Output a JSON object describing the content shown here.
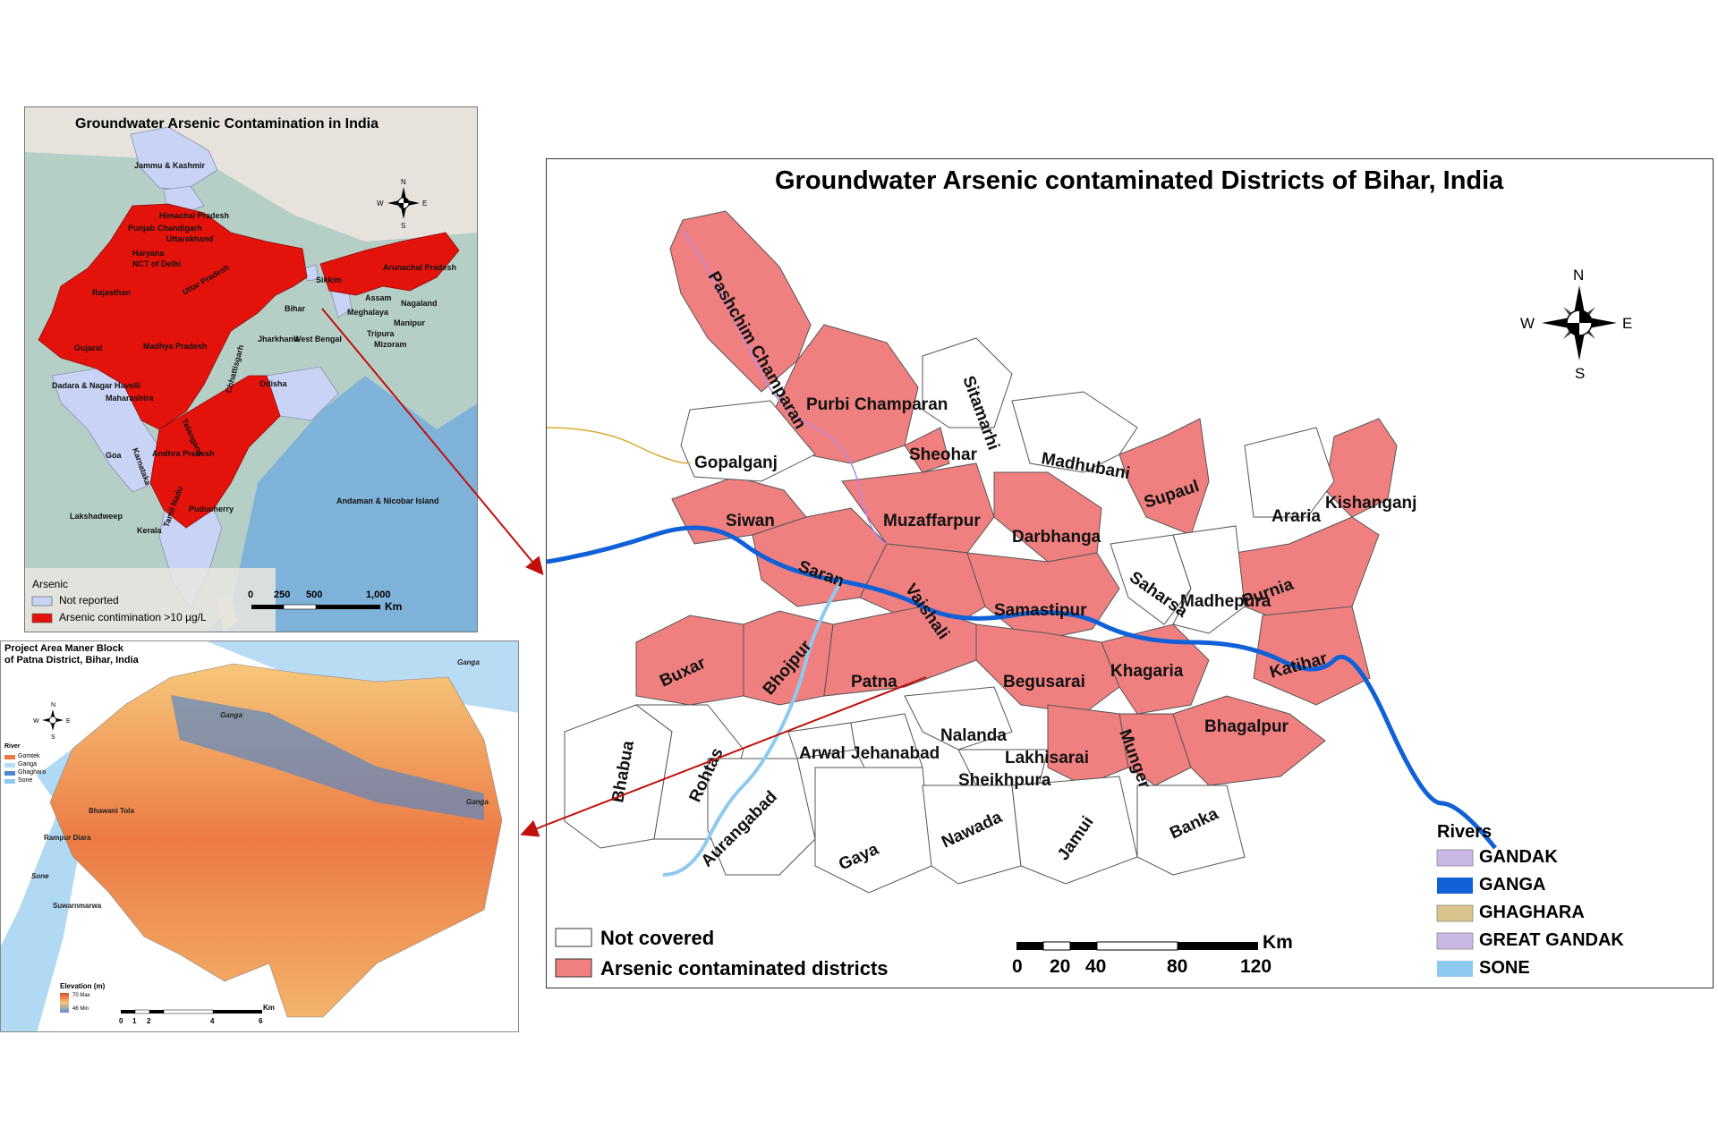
{
  "india_map": {
    "title": "Groundwater Arsenic Contamination in India",
    "compass": {
      "n": "N",
      "s": "S",
      "e": "E",
      "w": "W"
    },
    "states": [
      "Jammu & Kashmir",
      "Himachal Pradesh",
      "Punjab",
      "Chandigarh",
      "Uttarakhand",
      "Haryana",
      "NCT of Delhi",
      "Uttar Pradesh",
      "Rajasthan",
      "Bihar",
      "Sikkim",
      "Arunachal Pradesh",
      "Assam",
      "Nagaland",
      "Meghalaya",
      "Manipur",
      "Tripura",
      "Mizoram",
      "Gujarat",
      "Madhya Pradesh",
      "Jharkhand",
      "West Bengal",
      "Dadara & Nagar Havelli",
      "Maharashtra",
      "Chhattisgarh",
      "Odisha",
      "Telangana",
      "Goa",
      "Karnataka",
      "Andhra Pradesh",
      "Lakshadweep",
      "Kerala",
      "Tamil Nadu",
      "Puducherry",
      "Andaman & Nicobar Island"
    ],
    "legend_title": "Arsenic",
    "legend_not_reported": "Not reported",
    "legend_contamination": "Arsenic contimination >10 µg/L",
    "scale_ticks": [
      "0",
      "250",
      "500",
      "1,000"
    ],
    "scale_unit": "Km",
    "colors": {
      "contaminated": "#e3120b",
      "not_reported": "#c8d3f5",
      "sea": "#7fb2d9"
    }
  },
  "bihar_map": {
    "title": "Groundwater Arsenic contaminated Districts of Bihar, India",
    "compass": {
      "n": "N",
      "s": "S",
      "e": "E",
      "w": "W"
    },
    "districts_contaminated": [
      "Pashchim Champaran",
      "Purbi Champaran",
      "Sheohar",
      "Siwan",
      "Saran",
      "Muzaffarpur",
      "Vaishali",
      "Darbhanga",
      "Samastipur",
      "Supaul",
      "Kishanganj",
      "Purnia",
      "Katihar",
      "Buxar",
      "Bhojpur",
      "Patna",
      "Begusarai",
      "Khagaria",
      "Munger",
      "Lakhisarai",
      "Bhagalpur"
    ],
    "districts_not_covered": [
      "Gopalganj",
      "Sitamarhi",
      "Madhubani",
      "Araria",
      "Saharsa",
      "Madhepura",
      "Bhabua",
      "Rohtas",
      "Arwal",
      "Jehanabad",
      "Nalanda",
      "Sheikhpura",
      "Aurangabad",
      "Gaya",
      "Nawada",
      "Jamui",
      "Banka"
    ],
    "legend_not_covered": "Not covered",
    "legend_contaminated": "Arsenic contaminated districts",
    "scale_ticks": [
      "0",
      "20",
      "40",
      "80",
      "120"
    ],
    "scale_unit": "Km",
    "rivers_title": "Rivers",
    "rivers": [
      {
        "name": "GANDAK",
        "color": "#c9b8e6"
      },
      {
        "name": "GANGA",
        "color": "#1060d8"
      },
      {
        "name": "GHAGHARA",
        "color": "#d9c48c"
      },
      {
        "name": "GREAT GANDAK",
        "color": "#c9b8e6"
      },
      {
        "name": "SONE",
        "color": "#8ec9ef"
      }
    ],
    "colors": {
      "contaminated": "#f08080",
      "not_covered": "#ffffff"
    }
  },
  "patna_map": {
    "title_line1": "Project Area Maner Block",
    "title_line2": "of Patna District, Bihar, India",
    "compass": {
      "n": "N",
      "s": "S",
      "e": "E",
      "w": "W"
    },
    "river_labels": [
      "Ganga",
      "Ganga",
      "Ganga",
      "Sone"
    ],
    "place_labels": [
      "Bhawani Tola",
      "Rampur Diara",
      "Suwarnmarwa"
    ],
    "legend_title": "River",
    "legend_rivers": [
      "Gomtek",
      "Ganga",
      "Ghaghara",
      "Sone"
    ],
    "elevation_title": "Elevation (m)",
    "elevation_max": "70 Max",
    "elevation_min": "46 Min",
    "scale_ticks": [
      "0",
      "1",
      "2",
      "4",
      "6"
    ],
    "scale_unit": "Km"
  }
}
